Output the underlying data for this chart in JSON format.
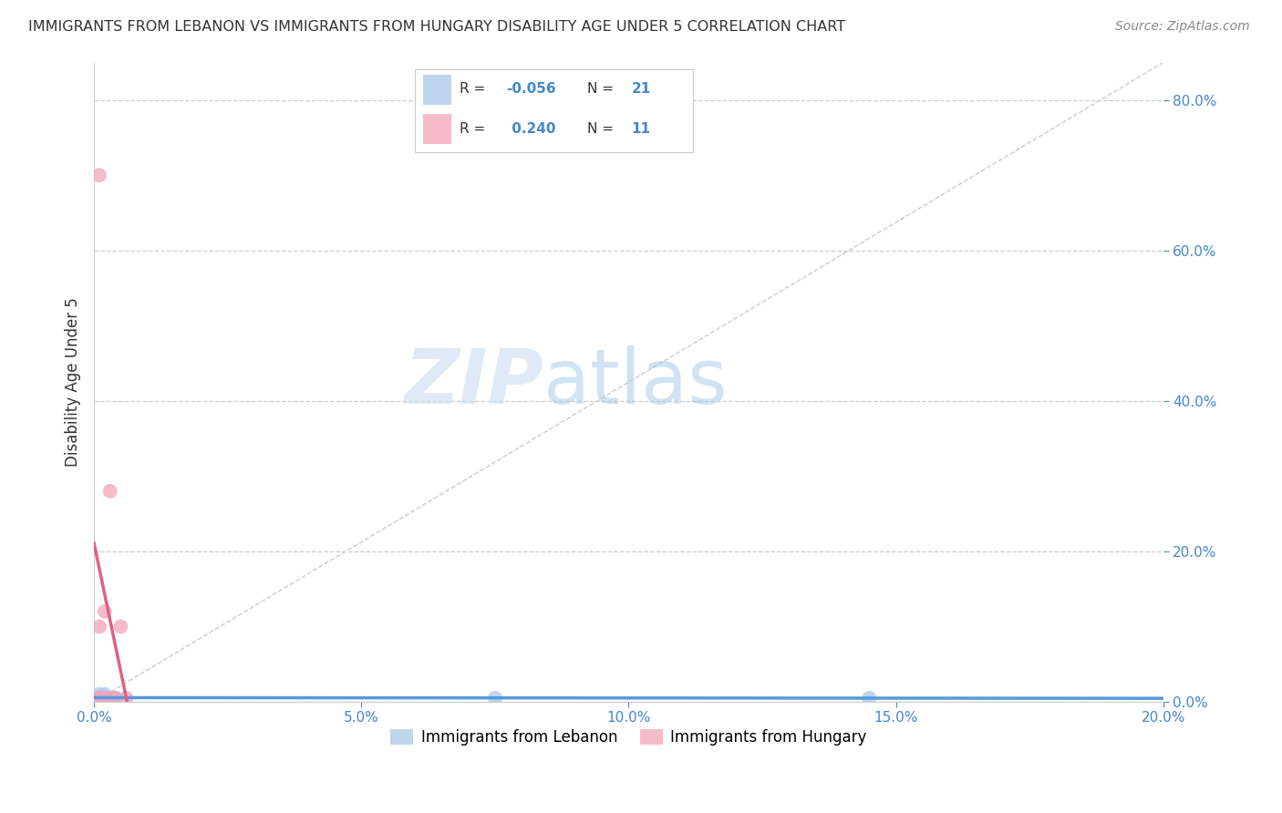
{
  "title": "IMMIGRANTS FROM LEBANON VS IMMIGRANTS FROM HUNGARY DISABILITY AGE UNDER 5 CORRELATION CHART",
  "source": "Source: ZipAtlas.com",
  "ylabel": "Disability Age Under 5",
  "xlim": [
    0.0,
    0.2
  ],
  "ylim": [
    0.0,
    0.85
  ],
  "xticks": [
    0.0,
    0.05,
    0.1,
    0.15,
    0.2
  ],
  "yticks": [
    0.0,
    0.2,
    0.4,
    0.6,
    0.8
  ],
  "lebanon_color": "#a8c8e8",
  "hungary_color": "#f4a4b8",
  "lebanon_R": -0.056,
  "lebanon_N": 21,
  "hungary_R": 0.24,
  "hungary_N": 11,
  "lebanon_line_color": "#5599dd",
  "hungary_line_color": "#e06080",
  "lebanon_points_x": [
    0.001,
    0.002,
    0.001,
    0.003,
    0.002,
    0.001,
    0.004,
    0.002,
    0.001,
    0.001,
    0.003,
    0.002,
    0.001,
    0.002,
    0.001,
    0.003,
    0.004,
    0.001,
    0.075,
    0.001,
    0.145
  ],
  "lebanon_points_y": [
    0.005,
    0.005,
    0.01,
    0.005,
    0.005,
    0.005,
    0.005,
    0.005,
    0.005,
    0.005,
    0.005,
    0.005,
    0.005,
    0.01,
    0.005,
    0.005,
    0.005,
    0.005,
    0.005,
    0.005,
    0.005
  ],
  "hungary_points_x": [
    0.001,
    0.001,
    0.001,
    0.001,
    0.002,
    0.002,
    0.003,
    0.003,
    0.004,
    0.005,
    0.006
  ],
  "hungary_points_y": [
    0.005,
    0.005,
    0.1,
    0.7,
    0.005,
    0.12,
    0.28,
    0.005,
    0.005,
    0.1,
    0.005
  ],
  "legend_labels": [
    "Immigrants from Lebanon",
    "Immigrants from Hungary"
  ],
  "watermark_zip": "ZIP",
  "watermark_atlas": "atlas",
  "background_color": "#ffffff",
  "grid_color": "#cccccc",
  "tick_color": "#4488cc",
  "label_color": "#333333",
  "source_color": "#888888"
}
